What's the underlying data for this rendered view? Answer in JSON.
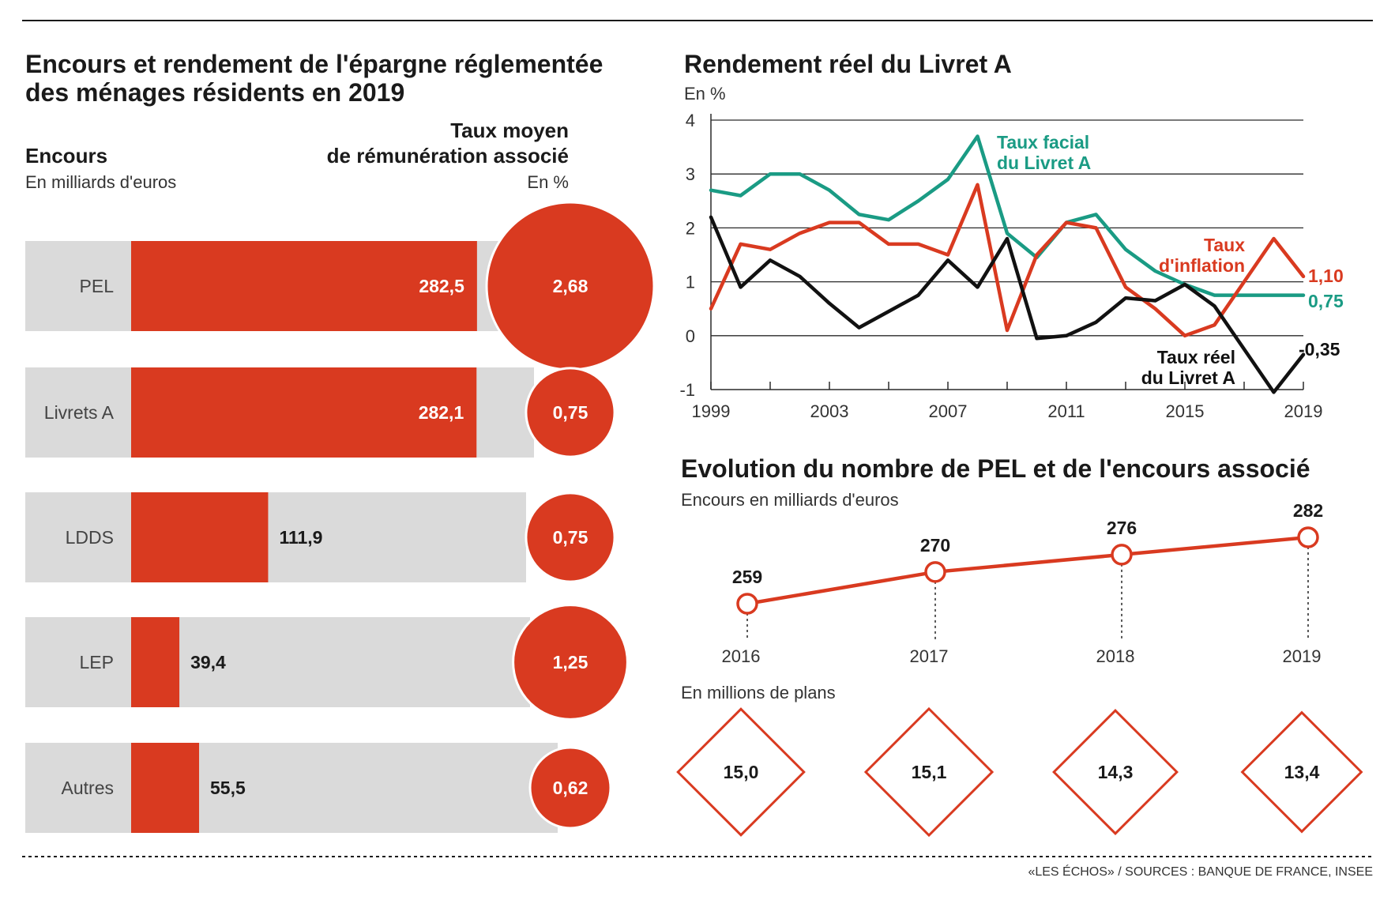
{
  "colors": {
    "red": "#d93a20",
    "green": "#1a9b84",
    "black": "#111111",
    "gray_bar": "#dadada",
    "grid": "#2a2a2a"
  },
  "left_panel": {
    "title_line1": "Encours et rendement de l'épargne réglementée",
    "title_line2": "des ménages résidents en 2019",
    "encours_label": "Encours",
    "encours_unit": "En milliards d'euros",
    "taux_label_line1": "Taux moyen",
    "taux_label_line2": "de rémunération associé",
    "taux_unit": "En %"
  },
  "right_top": {
    "title": "Rendement réel du Livret A",
    "unit": "En %",
    "label_facial_line1": "Taux facial",
    "label_facial_line2": "du Livret A",
    "label_inflation_line1": "Taux",
    "label_inflation_line2": "d'inflation",
    "label_reel_line1": "Taux réel",
    "label_reel_line2": "du Livret A",
    "end_inflation": "1,10",
    "end_facial": "0,75",
    "end_reel": "-0,35"
  },
  "right_bottom": {
    "title": "Evolution du nombre de PEL et de l'encours associé",
    "encours_unit": "Encours en milliards d'euros",
    "plans_unit": "En millions de plans"
  },
  "source": "«LES ÉCHOS» / SOURCES : BANQUE DE FRANCE, INSEE",
  "chart_data": [
    {
      "type": "bar",
      "title": "Encours et rendement de l'épargne réglementée des ménages résidents en 2019",
      "categories": [
        "PEL",
        "Livrets A",
        "LDDS",
        "LEP",
        "Autres"
      ],
      "series": [
        {
          "name": "Encours",
          "values": [
            282.5,
            282.1,
            111.9,
            39.4,
            55.5
          ],
          "labels": [
            "282,5",
            "282,1",
            "111,9",
            "39,4",
            "55,5"
          ]
        },
        {
          "name": "Taux moyen de rémunération associé",
          "values": [
            2.68,
            0.75,
            0.75,
            1.25,
            0.62
          ],
          "labels": [
            "2,68",
            "0,75",
            "0,75",
            "1,25",
            "0,62"
          ]
        }
      ],
      "xlim": [
        0,
        350
      ]
    },
    {
      "type": "line",
      "title": "Rendement réel du Livret A",
      "ylabel": "En %",
      "ylim": [
        -1,
        4
      ],
      "yticks": [
        4,
        3,
        2,
        1,
        0,
        -1
      ],
      "xlim": [
        1999,
        2019
      ],
      "xticks": [
        1999,
        2003,
        2007,
        2011,
        2015,
        2019
      ],
      "grid": true,
      "series": [
        {
          "name": "Taux facial du Livret A",
          "x": [
            1999,
            2000,
            2001,
            2002,
            2003,
            2004,
            2005,
            2006,
            2007,
            2008,
            2009,
            2010,
            2011,
            2012,
            2013,
            2014,
            2015,
            2016,
            2017,
            2018,
            2019
          ],
          "values": [
            2.7,
            2.6,
            3.0,
            3.0,
            2.7,
            2.25,
            2.15,
            2.5,
            2.9,
            3.7,
            1.9,
            1.45,
            2.1,
            2.25,
            1.6,
            1.2,
            0.95,
            0.75,
            0.75,
            0.75,
            0.75
          ]
        },
        {
          "name": "Taux d'inflation",
          "x": [
            1999,
            2000,
            2001,
            2002,
            2003,
            2004,
            2005,
            2006,
            2007,
            2008,
            2009,
            2010,
            2011,
            2012,
            2013,
            2014,
            2015,
            2016,
            2017,
            2018,
            2019
          ],
          "values": [
            0.5,
            1.7,
            1.6,
            1.9,
            2.1,
            2.1,
            1.7,
            1.7,
            1.5,
            2.8,
            0.1,
            1.5,
            2.1,
            2.0,
            0.9,
            0.5,
            0.0,
            0.2,
            1.0,
            1.8,
            1.1
          ]
        },
        {
          "name": "Taux réel du Livret A",
          "x": [
            1999,
            2000,
            2001,
            2002,
            2003,
            2004,
            2005,
            2006,
            2007,
            2008,
            2009,
            2010,
            2011,
            2012,
            2013,
            2014,
            2015,
            2016,
            2017,
            2018,
            2019
          ],
          "values": [
            2.2,
            0.9,
            1.4,
            1.1,
            0.6,
            0.15,
            0.45,
            0.75,
            1.4,
            0.9,
            1.8,
            -0.05,
            0.0,
            0.25,
            0.7,
            0.65,
            0.95,
            0.55,
            -0.25,
            -1.05,
            -0.35
          ]
        }
      ]
    },
    {
      "type": "line",
      "title": "Evolution du nombre de PEL et de l'encours associé",
      "ylabel": "Encours en milliards d'euros",
      "categories": [
        "2016",
        "2017",
        "2018",
        "2019"
      ],
      "series": [
        {
          "name": "Encours",
          "values": [
            259,
            270,
            276,
            282
          ]
        },
        {
          "name": "En millions de plans",
          "values": [
            15.0,
            15.1,
            14.3,
            13.4
          ],
          "labels": [
            "15,0",
            "15,1",
            "14,3",
            "13,4"
          ]
        }
      ]
    }
  ]
}
